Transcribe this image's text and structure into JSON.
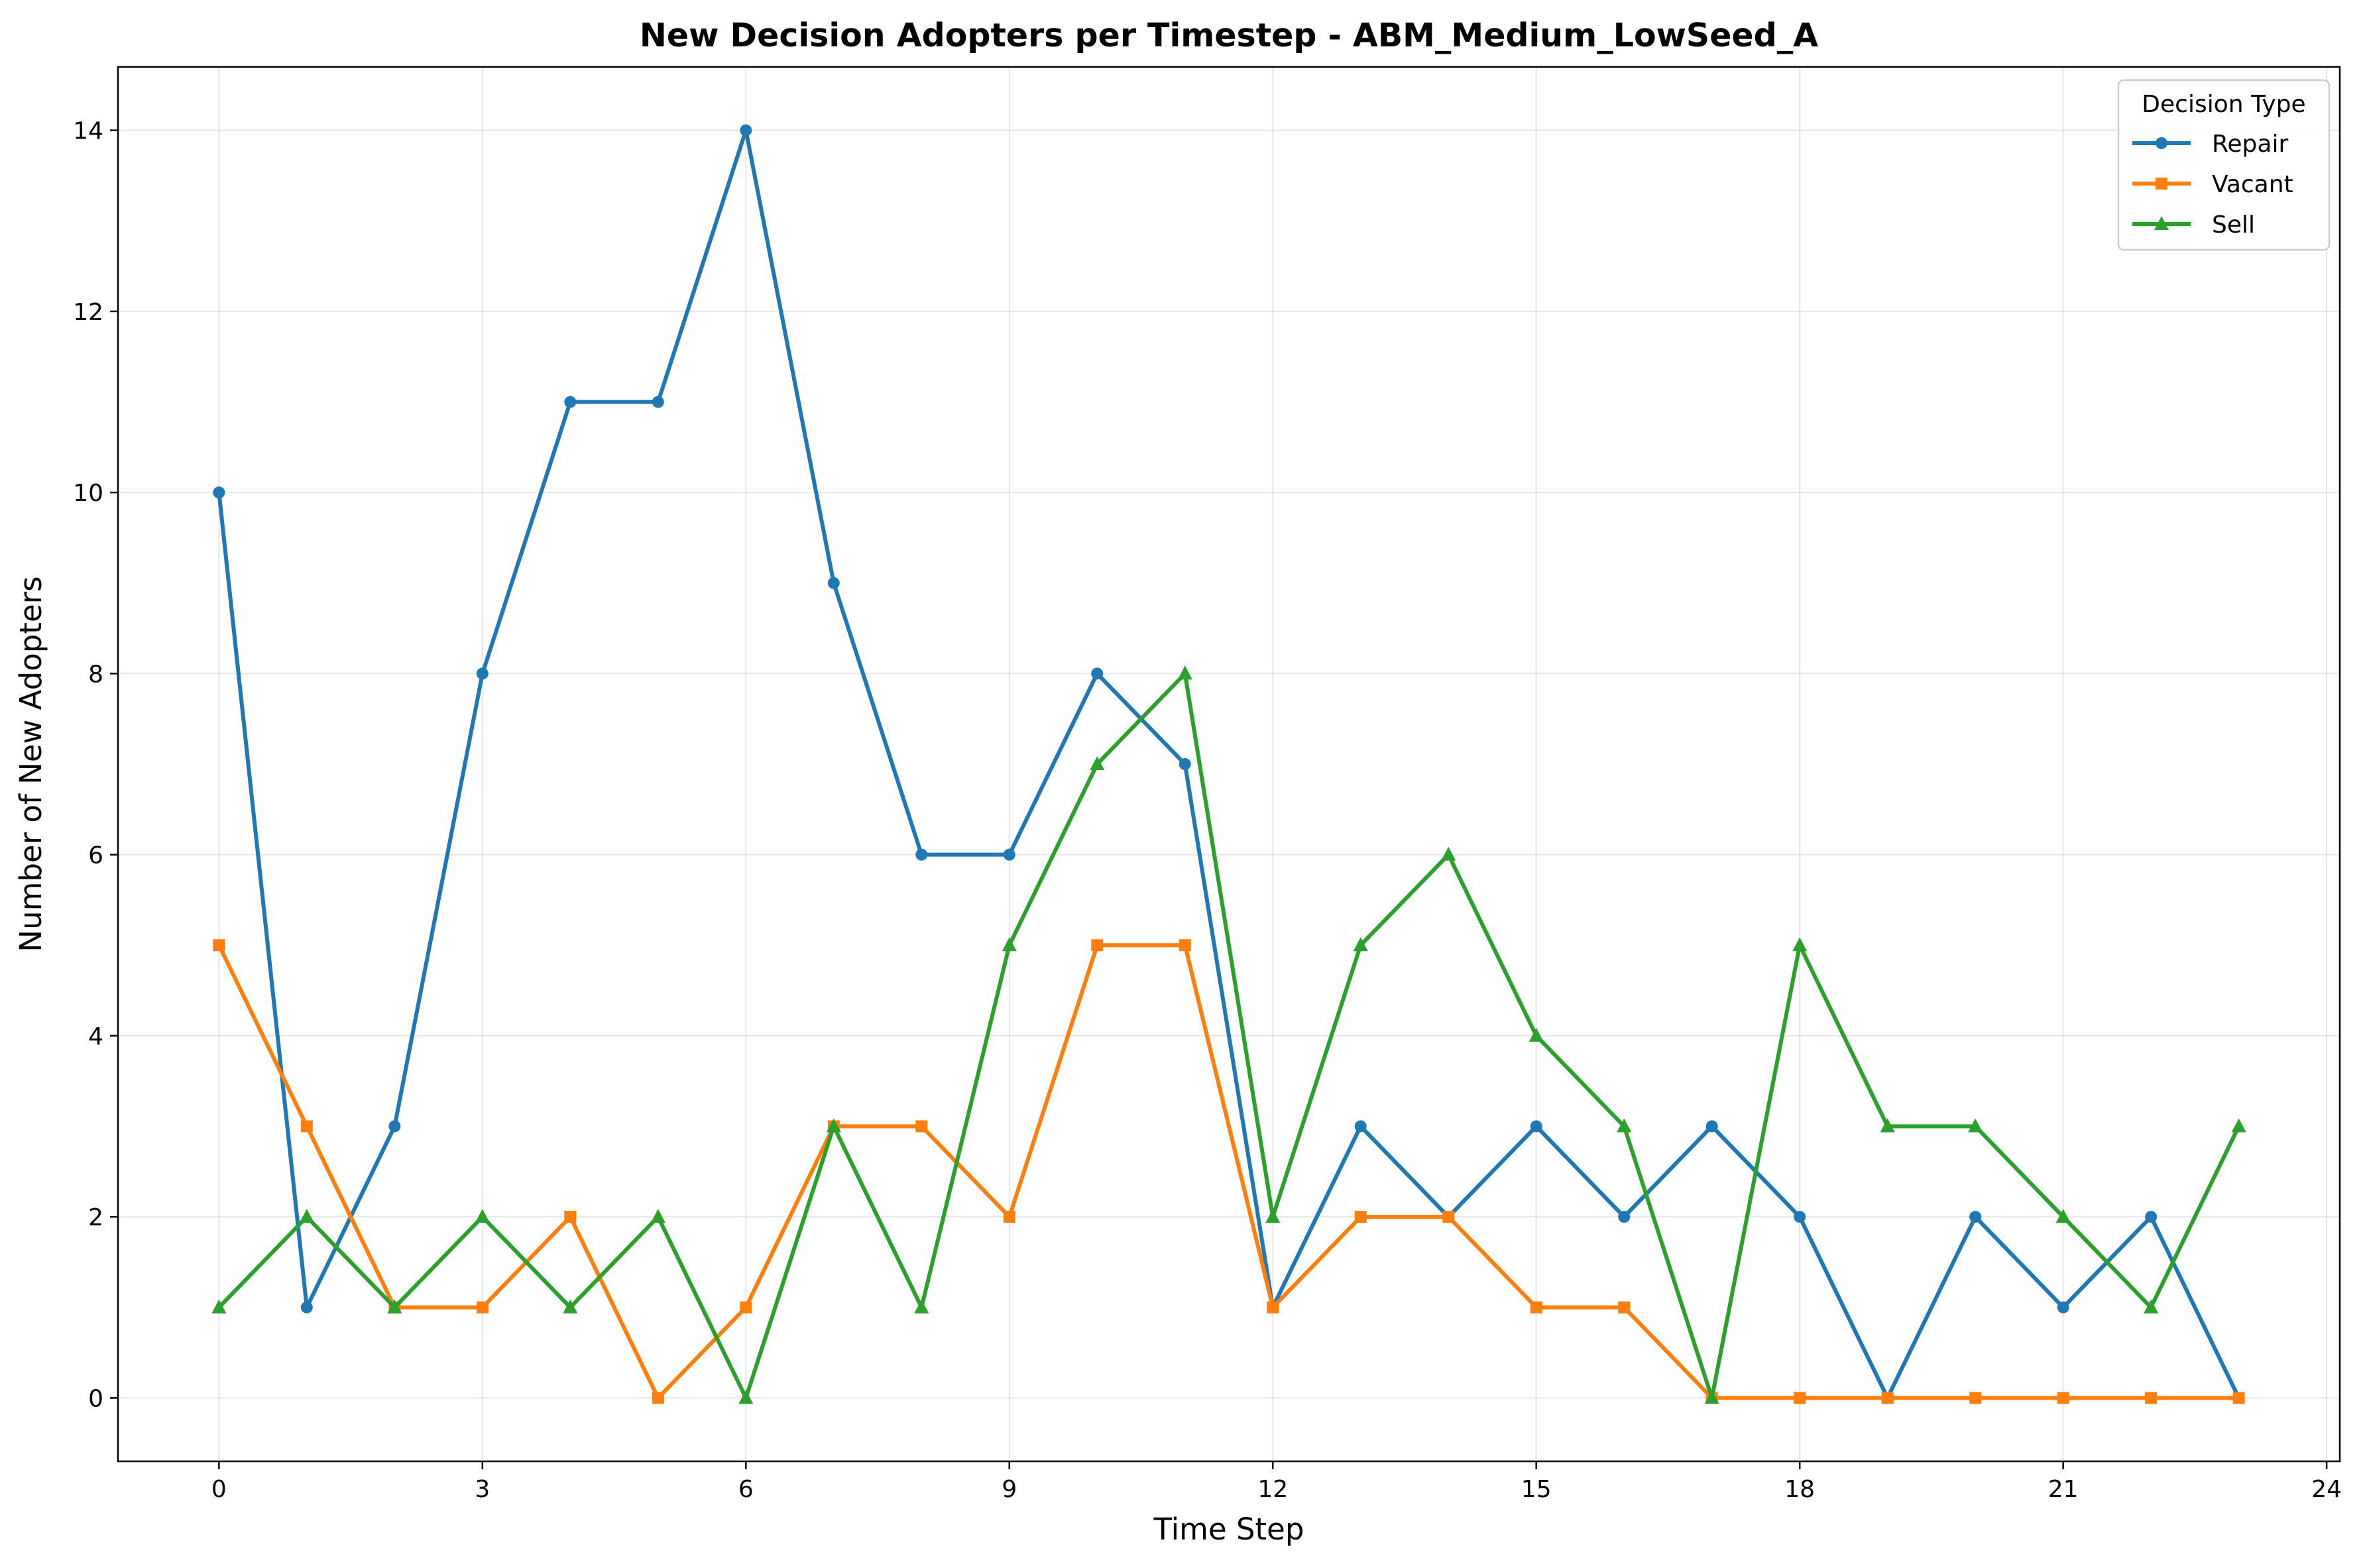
{
  "chart_data": {
    "type": "line",
    "title": "New Decision Adopters per Timestep - ABM_Medium_LowSeed_A",
    "xlabel": "Time Step",
    "ylabel": "Number of New Adopters",
    "x": [
      0,
      1,
      2,
      3,
      4,
      5,
      6,
      7,
      8,
      9,
      10,
      11,
      12,
      13,
      14,
      15,
      16,
      17,
      18,
      19,
      20,
      21,
      22,
      23
    ],
    "xlim": [
      -1.15,
      24.15
    ],
    "ylim": [
      -0.7,
      14.7
    ],
    "xticks": [
      0,
      3,
      6,
      9,
      12,
      15,
      18,
      21,
      24
    ],
    "yticks": [
      0,
      2,
      4,
      6,
      8,
      10,
      12,
      14
    ],
    "grid": true,
    "legend": {
      "title": "Decision Type",
      "placement": "top-right"
    },
    "series": [
      {
        "name": "Repair",
        "color": "#1f77b4",
        "marker": "circle",
        "values": [
          10,
          1,
          3,
          8,
          11,
          11,
          14,
          9,
          6,
          6,
          8,
          7,
          1,
          3,
          2,
          3,
          2,
          3,
          2,
          0,
          2,
          1,
          2,
          0
        ]
      },
      {
        "name": "Vacant",
        "color": "#ff7f0e",
        "marker": "square",
        "values": [
          5,
          3,
          1,
          1,
          2,
          0,
          1,
          3,
          3,
          2,
          5,
          5,
          1,
          2,
          2,
          1,
          1,
          0,
          0,
          0,
          0,
          0,
          0,
          0
        ]
      },
      {
        "name": "Sell",
        "color": "#2ca02c",
        "marker": "triangle",
        "values": [
          1,
          2,
          1,
          2,
          1,
          2,
          0,
          3,
          1,
          5,
          7,
          8,
          2,
          5,
          6,
          4,
          3,
          0,
          5,
          3,
          3,
          2,
          1,
          3
        ]
      }
    ]
  }
}
